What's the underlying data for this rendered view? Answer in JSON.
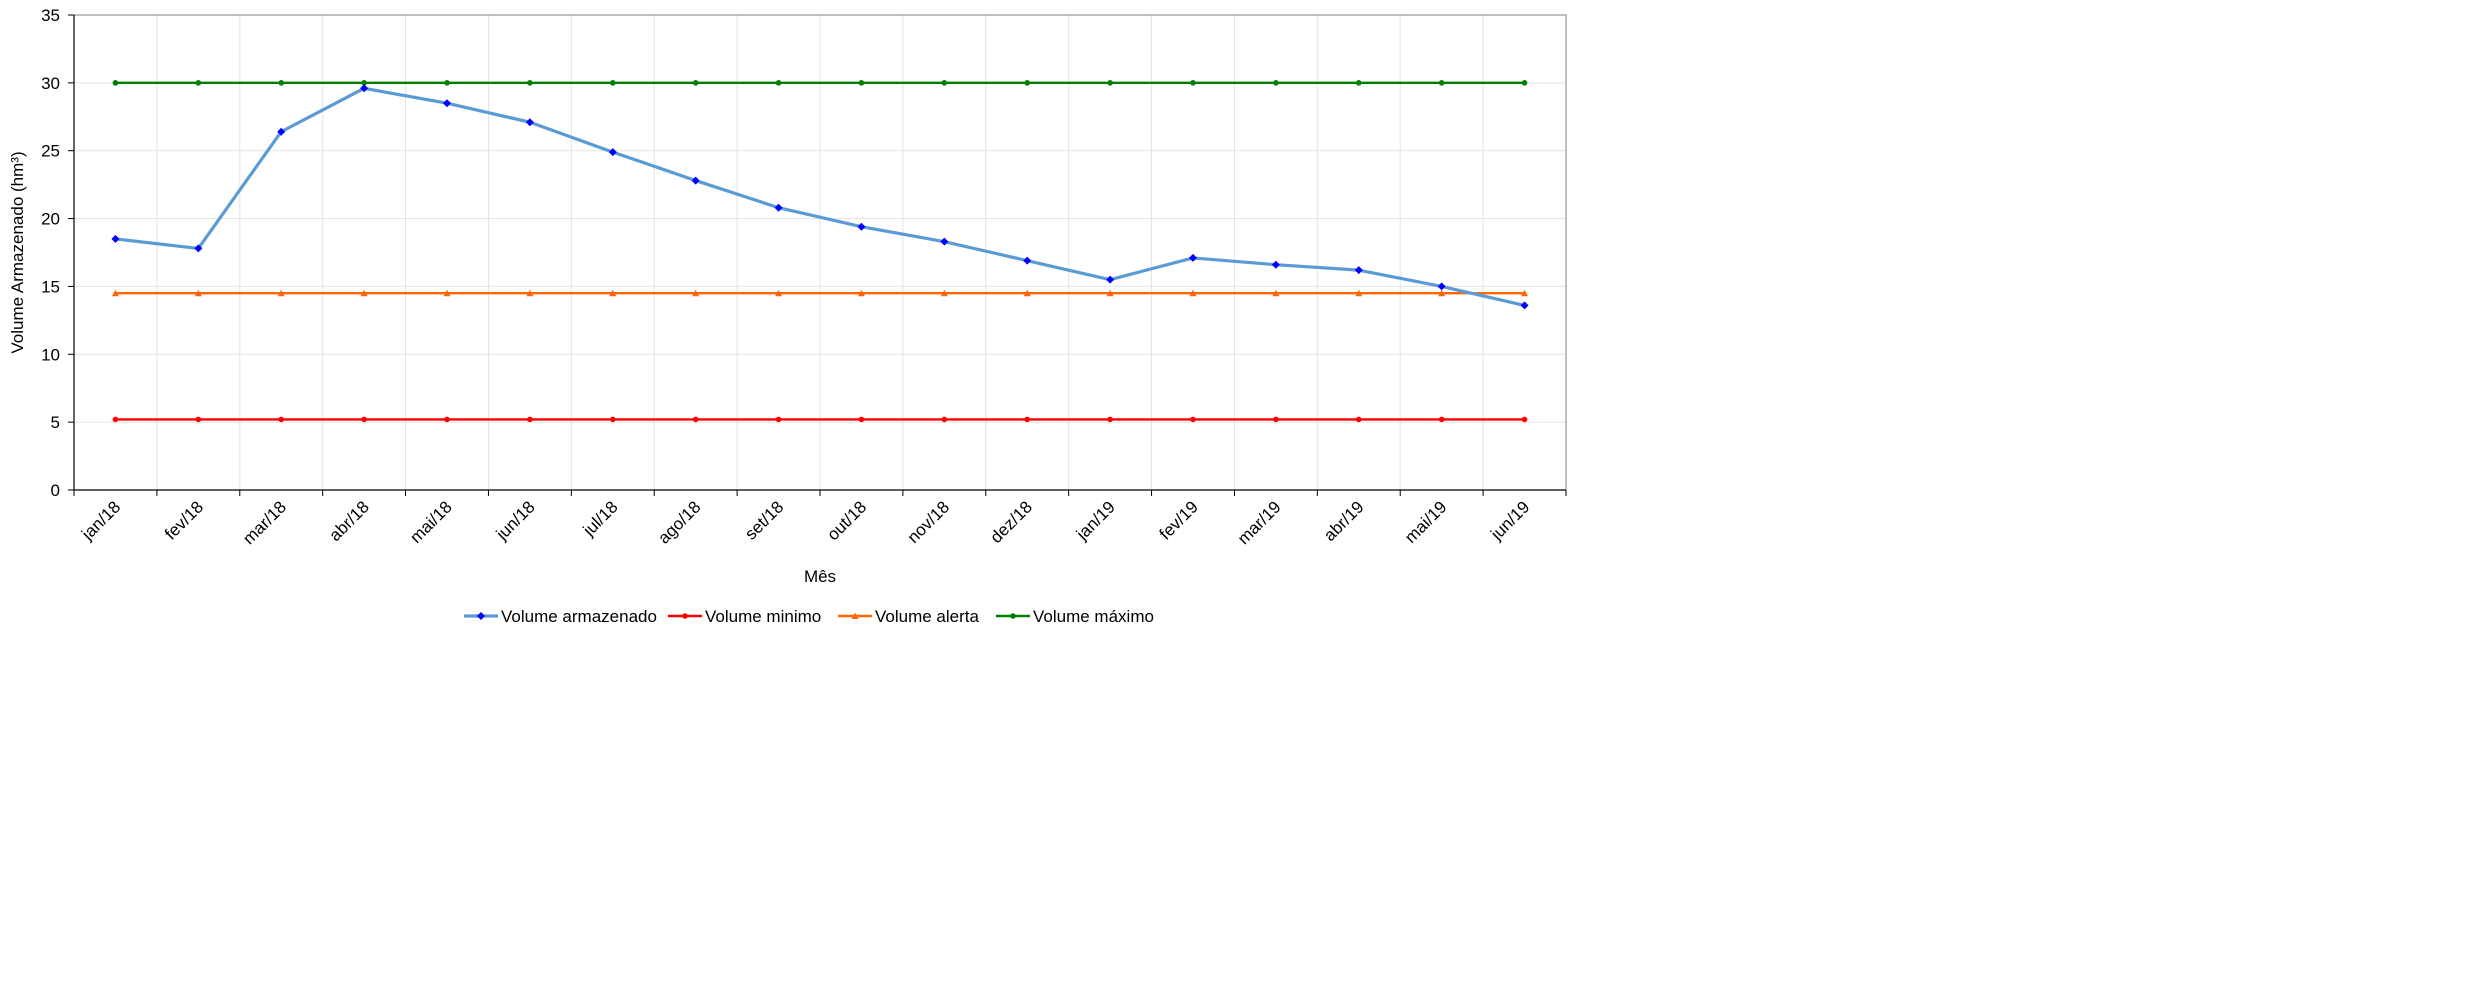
{
  "chart_data": {
    "type": "line",
    "title": "",
    "xlabel": "Mês",
    "ylabel": "Volume Armazenado (hm³)",
    "ylim": [
      0,
      35
    ],
    "yticks": [
      0,
      5,
      10,
      15,
      20,
      25,
      30,
      35
    ],
    "grid": true,
    "legend_position": "bottom",
    "categories": [
      "jan/18",
      "fev/18",
      "mar/18",
      "abr/18",
      "mai/18",
      "jun/18",
      "jul/18",
      "ago/18",
      "set/18",
      "out/18",
      "nov/18",
      "dez/18",
      "jan/19",
      "fev/19",
      "mar/19",
      "abr/19",
      "mai/19",
      "jun/19"
    ],
    "series": [
      {
        "name": "Volume armazenado",
        "color": "#5b9bd5",
        "marker_color": "#0000ff",
        "marker": "diamond",
        "values": [
          18.5,
          17.8,
          26.4,
          29.6,
          28.5,
          27.1,
          24.9,
          22.8,
          20.8,
          19.4,
          18.3,
          16.9,
          15.5,
          17.1,
          16.6,
          16.2,
          15.0,
          13.6
        ]
      },
      {
        "name": "Volume minimo",
        "color": "#ff0000",
        "marker_color": "#ff0000",
        "marker": "circle",
        "values": [
          5.2,
          5.2,
          5.2,
          5.2,
          5.2,
          5.2,
          5.2,
          5.2,
          5.2,
          5.2,
          5.2,
          5.2,
          5.2,
          5.2,
          5.2,
          5.2,
          5.2,
          5.2
        ]
      },
      {
        "name": "Volume alerta",
        "color": "#ff6600",
        "marker_color": "#ff6600",
        "marker": "triangle",
        "values": [
          14.5,
          14.5,
          14.5,
          14.5,
          14.5,
          14.5,
          14.5,
          14.5,
          14.5,
          14.5,
          14.5,
          14.5,
          14.5,
          14.5,
          14.5,
          14.5,
          14.5,
          14.5
        ]
      },
      {
        "name": "Volume máximo",
        "color": "#008000",
        "marker_color": "#008000",
        "marker": "circle",
        "values": [
          30.0,
          30.0,
          30.0,
          30.0,
          30.0,
          30.0,
          30.0,
          30.0,
          30.0,
          30.0,
          30.0,
          30.0,
          30.0,
          30.0,
          30.0,
          30.0,
          30.0,
          30.0
        ]
      }
    ]
  }
}
